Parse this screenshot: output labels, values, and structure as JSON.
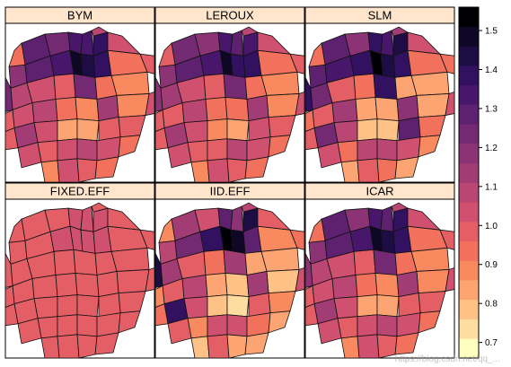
{
  "chart_data": {
    "type": "choropleth",
    "panels": [
      {
        "title": "BYM",
        "values": [
          1.27,
          1.22,
          1.33,
          1.31,
          1.18,
          1.3,
          1.34,
          1.48,
          1.42,
          1.38,
          0.95,
          0.88,
          1.36,
          1.1,
          1.02,
          0.97,
          1.24,
          0.93,
          0.88,
          1.02,
          1.08,
          0.94,
          0.9,
          1.12,
          1.0,
          1.05,
          0.86,
          0.86,
          1.01,
          1.15,
          1.0,
          1.02,
          1.08,
          1.04,
          0.96,
          0.88,
          1.04,
          1.0,
          0.92,
          1.22,
          1.0,
          1.05,
          0.98,
          1.0,
          1.02,
          1.1,
          0.96,
          1.02
        ]
      },
      {
        "title": "LEROUX",
        "values": [
          1.25,
          1.2,
          1.32,
          1.3,
          1.17,
          1.29,
          1.33,
          1.47,
          1.41,
          1.37,
          0.96,
          0.88,
          1.35,
          1.11,
          1.02,
          0.98,
          1.22,
          0.93,
          0.89,
          1.01,
          1.07,
          0.94,
          0.91,
          1.11,
          1.0,
          1.04,
          0.87,
          0.86,
          1.02,
          1.14,
          1.0,
          1.01,
          1.07,
          1.04,
          0.95,
          0.88,
          1.03,
          1.0,
          0.93,
          1.2,
          1.0,
          1.04,
          0.98,
          1.0,
          1.02,
          1.09,
          0.97,
          1.02
        ]
      },
      {
        "title": "SLM",
        "values": [
          1.3,
          1.2,
          1.4,
          1.35,
          1.26,
          1.34,
          1.4,
          1.52,
          1.45,
          1.4,
          0.92,
          0.85,
          1.44,
          1.22,
          1.0,
          0.95,
          1.38,
          0.86,
          0.84,
          1.0,
          1.12,
          0.84,
          0.82,
          1.2,
          0.95,
          1.08,
          0.8,
          0.78,
          1.3,
          1.25,
          0.92,
          1.08,
          1.1,
          1.02,
          0.88,
          0.82,
          1.0,
          0.93,
          0.86,
          1.36,
          0.96,
          1.05,
          0.96,
          1.0,
          1.05,
          1.15,
          0.92,
          1.02
        ]
      },
      {
        "title": "FIXED.EFF",
        "values": [
          1.01,
          1.0,
          1.02,
          1.02,
          1.0,
          1.01,
          1.02,
          1.03,
          1.02,
          1.02,
          0.99,
          0.98,
          1.02,
          1.0,
          1.0,
          0.99,
          1.01,
          0.99,
          0.98,
          1.0,
          1.0,
          0.99,
          0.99,
          1.01,
          1.0,
          1.0,
          0.98,
          0.98,
          1.0,
          1.01,
          1.0,
          1.0,
          1.0,
          1.0,
          0.99,
          0.98,
          1.0,
          1.0,
          0.99,
          1.01,
          1.0,
          1.0,
          0.99,
          1.0,
          1.0,
          1.0,
          0.99,
          1.0
        ]
      },
      {
        "title": "IID.EFF",
        "values": [
          1.12,
          1.02,
          1.3,
          1.2,
          1.1,
          1.22,
          1.38,
          1.55,
          1.46,
          1.28,
          0.88,
          0.84,
          1.44,
          1.14,
          0.98,
          0.93,
          1.12,
          0.86,
          0.8,
          0.98,
          1.06,
          0.82,
          0.78,
          1.16,
          0.9,
          1.02,
          0.78,
          0.74,
          1.0,
          1.36,
          0.88,
          1.02,
          1.05,
          0.96,
          0.84,
          0.8,
          0.98,
          0.86,
          0.85,
          1.42,
          0.92,
          1.02,
          0.9,
          0.96,
          1.0,
          1.1,
          0.9,
          1.0
        ]
      },
      {
        "title": "ICAR",
        "values": [
          1.26,
          1.21,
          1.33,
          1.3,
          1.18,
          1.3,
          1.35,
          1.49,
          1.42,
          1.38,
          0.95,
          0.87,
          1.36,
          1.1,
          1.02,
          0.97,
          1.23,
          0.93,
          0.88,
          1.02,
          1.08,
          0.94,
          0.9,
          1.12,
          1.0,
          1.05,
          0.86,
          0.86,
          1.01,
          1.15,
          1.0,
          1.02,
          1.08,
          1.04,
          0.96,
          0.88,
          1.04,
          1.0,
          0.92,
          1.21,
          1.0,
          1.05,
          0.98,
          1.0,
          1.02,
          1.1,
          0.96,
          1.02
        ]
      }
    ],
    "colorbar": {
      "range": [
        0.66,
        1.56
      ],
      "ticks": [
        "0.7",
        "0.8",
        "0.9",
        "1.0",
        "1.1",
        "1.2",
        "1.3",
        "1.4",
        "1.5"
      ],
      "tick_values": [
        0.7,
        0.8,
        0.9,
        1.0,
        1.1,
        1.2,
        1.3,
        1.4,
        1.5
      ],
      "bins": 18,
      "palette": [
        "#FCFDBF",
        "#FDDEA0",
        "#FEC287",
        "#FCA572",
        "#F9895E",
        "#F1715C",
        "#E35F65",
        "#D0506F",
        "#B94673",
        "#A23C75",
        "#8B3375",
        "#732A73",
        "#5E2170",
        "#48176B",
        "#321160",
        "#1E0C45",
        "#0E0725",
        "#000004"
      ]
    }
  },
  "panel_header_color": "#FFE5CC",
  "watermark": "https://blog.csdn.net/qq_..."
}
